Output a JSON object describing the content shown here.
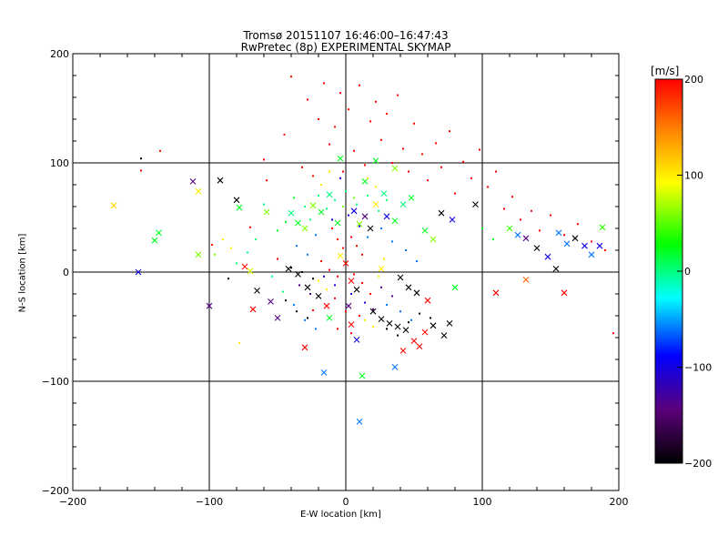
{
  "chart_data": {
    "type": "scatter",
    "title": "Tromsø 20151107 16:46:00–16:47:43",
    "subtitle": "RwPretec (8p) EXPERIMENTAL SKYMAP",
    "xlabel": "E-W location [km]",
    "ylabel": "N-S location [km]",
    "xlim": [
      -200,
      200
    ],
    "ylim": [
      -200,
      200
    ],
    "x_ticks": [
      -200,
      -100,
      0,
      100,
      200
    ],
    "y_ticks": [
      -200,
      -100,
      0,
      100,
      200
    ],
    "grid": true,
    "colorbar": {
      "label": "[m/s]",
      "range": [
        -200,
        200
      ],
      "ticks": [
        200,
        100,
        0,
        -100,
        -200
      ],
      "colors": [
        "#000000",
        "#5a007a",
        "#0000ff",
        "#00ffff",
        "#00ff00",
        "#ffff00",
        "#ff0000"
      ]
    },
    "series": [
      {
        "marker": "x",
        "points": [
          [
            -170,
            61,
            110
          ],
          [
            -152,
            0,
            -100
          ],
          [
            -140,
            29,
            20
          ],
          [
            -137,
            36,
            20
          ],
          [
            -112,
            83,
            -140
          ],
          [
            -108,
            74,
            100
          ],
          [
            -108,
            16,
            60
          ],
          [
            -92,
            84,
            -200
          ],
          [
            -80,
            66,
            -200
          ],
          [
            -78,
            59,
            20
          ],
          [
            -100,
            -31,
            -140
          ],
          [
            -74,
            5,
            200
          ],
          [
            -70,
            1,
            80
          ],
          [
            -65,
            -17,
            -200
          ],
          [
            -55,
            -27,
            -140
          ],
          [
            -68,
            -34,
            200
          ],
          [
            -40,
            54,
            0
          ],
          [
            -35,
            45,
            20
          ],
          [
            -30,
            40,
            60
          ],
          [
            -24,
            61,
            60
          ],
          [
            -18,
            55,
            20
          ],
          [
            -12,
            71,
            0
          ],
          [
            -6,
            45,
            20
          ],
          [
            -42,
            3,
            -200
          ],
          [
            -35,
            -2,
            -200
          ],
          [
            -28,
            -14,
            -200
          ],
          [
            -20,
            -22,
            -200
          ],
          [
            -14,
            -31,
            200
          ],
          [
            -12,
            -42,
            20
          ],
          [
            -4,
            15,
            100
          ],
          [
            0,
            8,
            200
          ],
          [
            4,
            -8,
            200
          ],
          [
            8,
            -16,
            -200
          ],
          [
            2,
            -31,
            -140
          ],
          [
            4,
            -48,
            200
          ],
          [
            8,
            -62,
            -100
          ],
          [
            6,
            56,
            -100
          ],
          [
            10,
            44,
            60
          ],
          [
            14,
            51,
            -140
          ],
          [
            18,
            40,
            -200
          ],
          [
            22,
            62,
            100
          ],
          [
            28,
            72,
            0
          ],
          [
            30,
            51,
            -100
          ],
          [
            36,
            47,
            20
          ],
          [
            42,
            62,
            0
          ],
          [
            48,
            68,
            20
          ],
          [
            58,
            38,
            20
          ],
          [
            64,
            30,
            60
          ],
          [
            70,
            54,
            -200
          ],
          [
            78,
            48,
            -100
          ],
          [
            95,
            62,
            -200
          ],
          [
            120,
            40,
            40
          ],
          [
            126,
            34,
            -60
          ],
          [
            132,
            31,
            -140
          ],
          [
            140,
            22,
            -200
          ],
          [
            148,
            14,
            -100
          ],
          [
            156,
            36,
            -60
          ],
          [
            162,
            26,
            -60
          ],
          [
            168,
            31,
            -200
          ],
          [
            175,
            24,
            -100
          ],
          [
            180,
            16,
            -60
          ],
          [
            186,
            24,
            -100
          ],
          [
            188,
            41,
            40
          ],
          [
            110,
            -19,
            200
          ],
          [
            132,
            -7,
            160
          ],
          [
            154,
            3,
            -200
          ],
          [
            160,
            -19,
            200
          ],
          [
            20,
            -36,
            -200
          ],
          [
            26,
            -43,
            -200
          ],
          [
            32,
            -47,
            -200
          ],
          [
            38,
            -50,
            -200
          ],
          [
            44,
            -53,
            -200
          ],
          [
            50,
            -63,
            200
          ],
          [
            54,
            -68,
            200
          ],
          [
            58,
            -55,
            200
          ],
          [
            64,
            -49,
            -200
          ],
          [
            72,
            -58,
            -200
          ],
          [
            76,
            -47,
            -200
          ],
          [
            -50,
            -42,
            -140
          ],
          [
            -30,
            -69,
            200
          ],
          [
            -16,
            -92,
            -60
          ],
          [
            10,
            -137,
            -60
          ],
          [
            36,
            -87,
            -60
          ],
          [
            42,
            -72,
            200
          ],
          [
            26,
            3,
            100
          ],
          [
            40,
            -5,
            -200
          ],
          [
            46,
            -14,
            -200
          ],
          [
            52,
            -19,
            -200
          ],
          [
            60,
            -26,
            200
          ],
          [
            80,
            -14,
            20
          ],
          [
            -4,
            104,
            20
          ],
          [
            14,
            83,
            20
          ],
          [
            22,
            102,
            20
          ],
          [
            36,
            95,
            60
          ],
          [
            12,
            -95,
            20
          ],
          [
            -58,
            55,
            60
          ]
        ]
      },
      {
        "marker": "dot",
        "points": [
          [
            -136,
            111,
            200
          ],
          [
            -150,
            104,
            -200
          ],
          [
            -98,
            25,
            200
          ],
          [
            -86,
            -6,
            -200
          ],
          [
            -78,
            -65,
            100
          ],
          [
            -70,
            41,
            200
          ],
          [
            -60,
            103,
            200
          ],
          [
            -58,
            84,
            200
          ],
          [
            -50,
            12,
            200
          ],
          [
            -45,
            126,
            200
          ],
          [
            -40,
            179,
            200
          ],
          [
            -32,
            96,
            200
          ],
          [
            -28,
            158,
            200
          ],
          [
            -24,
            88,
            200
          ],
          [
            -20,
            140,
            200
          ],
          [
            -16,
            173,
            200
          ],
          [
            -12,
            117,
            200
          ],
          [
            -8,
            133,
            200
          ],
          [
            -4,
            164,
            200
          ],
          [
            -2,
            92,
            200
          ],
          [
            2,
            149,
            200
          ],
          [
            6,
            111,
            200
          ],
          [
            10,
            171,
            200
          ],
          [
            14,
            98,
            200
          ],
          [
            18,
            138,
            200
          ],
          [
            22,
            156,
            200
          ],
          [
            26,
            121,
            200
          ],
          [
            30,
            145,
            200
          ],
          [
            34,
            100,
            200
          ],
          [
            38,
            162,
            200
          ],
          [
            42,
            113,
            200
          ],
          [
            46,
            92,
            200
          ],
          [
            50,
            136,
            200
          ],
          [
            56,
            108,
            200
          ],
          [
            60,
            84,
            200
          ],
          [
            66,
            118,
            200
          ],
          [
            70,
            96,
            200
          ],
          [
            76,
            129,
            200
          ],
          [
            80,
            72,
            200
          ],
          [
            86,
            101,
            200
          ],
          [
            92,
            86,
            200
          ],
          [
            98,
            112,
            200
          ],
          [
            104,
            78,
            200
          ],
          [
            110,
            92,
            200
          ],
          [
            116,
            58,
            200
          ],
          [
            122,
            69,
            200
          ],
          [
            128,
            48,
            200
          ],
          [
            136,
            56,
            200
          ],
          [
            142,
            38,
            200
          ],
          [
            150,
            52,
            200
          ],
          [
            160,
            34,
            200
          ],
          [
            170,
            44,
            200
          ],
          [
            180,
            28,
            200
          ],
          [
            190,
            20,
            200
          ],
          [
            -10,
            40,
            200
          ],
          [
            -6,
            30,
            200
          ],
          [
            -2,
            22,
            200
          ],
          [
            4,
            32,
            200
          ],
          [
            8,
            24,
            200
          ],
          [
            12,
            16,
            200
          ],
          [
            -18,
            10,
            200
          ],
          [
            -12,
            2,
            200
          ],
          [
            -6,
            -4,
            200
          ],
          [
            6,
            -2,
            200
          ],
          [
            12,
            -10,
            200
          ],
          [
            18,
            -20,
            200
          ],
          [
            -8,
            -24,
            200
          ],
          [
            0,
            -36,
            200
          ],
          [
            10,
            -40,
            200
          ],
          [
            -24,
            -35,
            200
          ],
          [
            -6,
            -52,
            200
          ],
          [
            4,
            -56,
            200
          ],
          [
            14,
            -44,
            100
          ],
          [
            20,
            -50,
            100
          ],
          [
            -20,
            -8,
            100
          ],
          [
            -14,
            -16,
            100
          ],
          [
            24,
            -4,
            100
          ],
          [
            28,
            12,
            100
          ],
          [
            -30,
            60,
            0
          ],
          [
            -26,
            48,
            0
          ],
          [
            -20,
            70,
            0
          ],
          [
            -14,
            58,
            0
          ],
          [
            -8,
            66,
            0
          ],
          [
            0,
            74,
            0
          ],
          [
            8,
            62,
            0
          ],
          [
            16,
            70,
            0
          ],
          [
            24,
            56,
            0
          ],
          [
            30,
            66,
            0
          ],
          [
            -44,
            46,
            20
          ],
          [
            -50,
            38,
            20
          ],
          [
            -60,
            62,
            0
          ],
          [
            -66,
            30,
            0
          ],
          [
            -72,
            18,
            0
          ],
          [
            -80,
            8,
            0
          ],
          [
            -54,
            -4,
            0
          ],
          [
            -46,
            -18,
            0
          ],
          [
            -36,
            24,
            -60
          ],
          [
            -28,
            16,
            -60
          ],
          [
            -22,
            34,
            -60
          ],
          [
            16,
            32,
            -60
          ],
          [
            26,
            40,
            -60
          ],
          [
            34,
            28,
            -60
          ],
          [
            44,
            20,
            -60
          ],
          [
            52,
            10,
            -60
          ],
          [
            -38,
            -30,
            -60
          ],
          [
            -30,
            -44,
            -60
          ],
          [
            -22,
            -52,
            -60
          ],
          [
            30,
            -30,
            -60
          ],
          [
            40,
            -36,
            -60
          ],
          [
            48,
            -44,
            -60
          ],
          [
            -4,
            86,
            -100
          ],
          [
            2,
            52,
            -100
          ],
          [
            -10,
            48,
            -100
          ],
          [
            10,
            42,
            -100
          ],
          [
            -16,
            -4,
            -100
          ],
          [
            -8,
            -12,
            -100
          ],
          [
            4,
            -20,
            -100
          ],
          [
            14,
            -28,
            -100
          ],
          [
            20,
            -34,
            -140
          ],
          [
            -26,
            -20,
            -140
          ],
          [
            -34,
            -12,
            -140
          ],
          [
            26,
            -14,
            -140
          ],
          [
            34,
            -22,
            -140
          ],
          [
            -44,
            -26,
            -200
          ],
          [
            -36,
            -36,
            -200
          ],
          [
            -28,
            -42,
            -200
          ],
          [
            -40,
            4,
            -200
          ],
          [
            -32,
            0,
            -200
          ],
          [
            -24,
            -6,
            -200
          ],
          [
            30,
            -52,
            -200
          ],
          [
            38,
            -58,
            -200
          ],
          [
            46,
            -46,
            -200
          ],
          [
            54,
            -38,
            -200
          ],
          [
            62,
            -42,
            -200
          ],
          [
            -2,
            60,
            60
          ],
          [
            6,
            68,
            60
          ],
          [
            -18,
            80,
            100
          ],
          [
            -12,
            92,
            100
          ],
          [
            16,
            86,
            100
          ],
          [
            22,
            78,
            100
          ],
          [
            -90,
            30,
            100
          ],
          [
            -84,
            22,
            100
          ],
          [
            -96,
            16,
            60
          ],
          [
            100,
            40,
            20
          ],
          [
            108,
            30,
            20
          ],
          [
            196,
            -56,
            200
          ],
          [
            -150,
            93,
            200
          ],
          [
            -38,
            68,
            20
          ]
        ]
      }
    ]
  }
}
